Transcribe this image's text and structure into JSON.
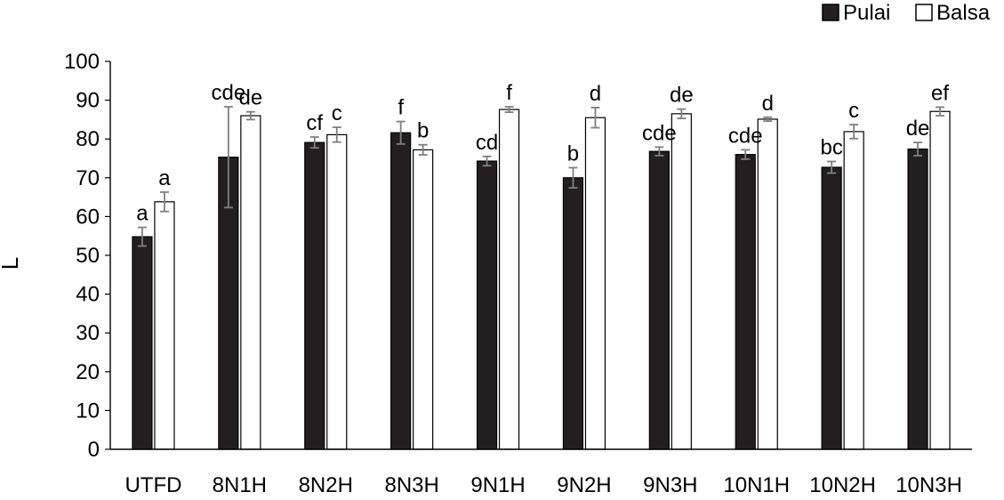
{
  "chart_data": {
    "type": "bar",
    "title": "",
    "xlabel": "",
    "ylabel": "L",
    "ylim": [
      0,
      100
    ],
    "yticks": [
      0,
      10,
      20,
      30,
      40,
      50,
      60,
      70,
      80,
      90,
      100
    ],
    "grid": false,
    "legend_position": "top-right",
    "categories": [
      "UTFD",
      "8N1H",
      "8N2H",
      "8N3H",
      "9N1H",
      "9N2H",
      "9N3H",
      "10N1H",
      "10N2H",
      "10N3H"
    ],
    "series": [
      {
        "name": "Pulai",
        "color": "#231f20",
        "values": [
          54.8,
          75.3,
          79.1,
          81.6,
          74.3,
          70.0,
          76.8,
          76.0,
          72.7,
          77.4
        ],
        "errors": [
          2.4,
          13.0,
          1.4,
          2.9,
          1.2,
          2.6,
          1.1,
          1.2,
          1.5,
          1.7
        ],
        "labels": [
          "a",
          "cde",
          "cf",
          "f",
          "cd",
          "b",
          "cde",
          "cde",
          "bc",
          "de"
        ]
      },
      {
        "name": "Balsa",
        "color": "#ffffff",
        "values": [
          63.8,
          86.0,
          81.1,
          77.2,
          87.6,
          85.5,
          86.5,
          85.1,
          81.9,
          87.1
        ],
        "errors": [
          2.5,
          1.0,
          1.9,
          1.3,
          0.7,
          2.6,
          1.2,
          0.5,
          1.8,
          1.1
        ],
        "labels": [
          "a",
          "de",
          "c",
          "b",
          "f",
          "d",
          "de",
          "d",
          "c",
          "ef"
        ]
      }
    ]
  }
}
